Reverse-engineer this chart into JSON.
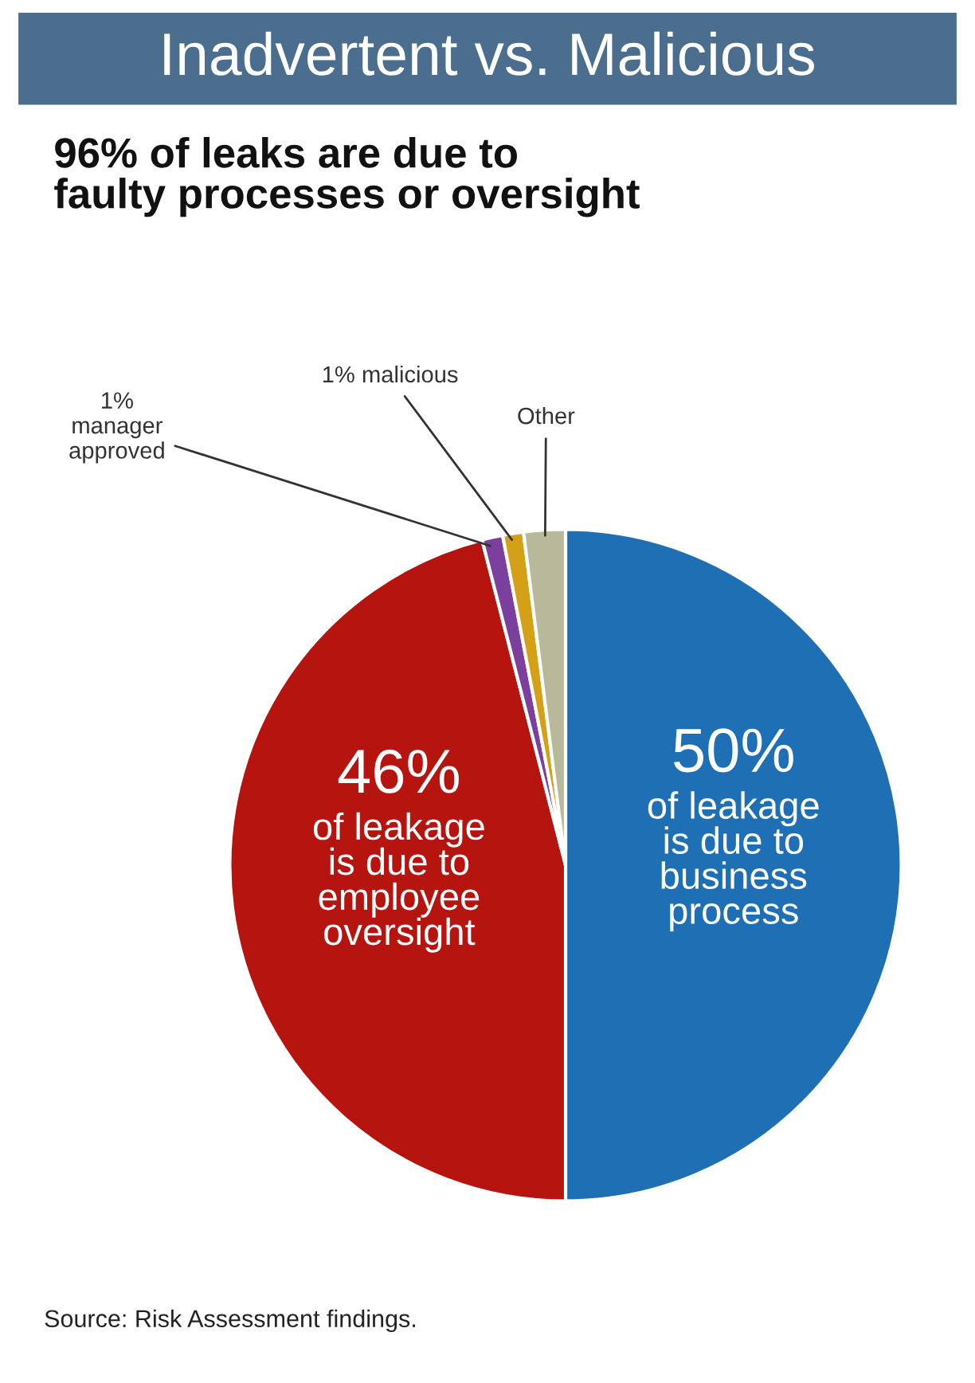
{
  "chart_data": {
    "type": "pie",
    "title": "Inadvertent vs. Malicious",
    "subtitle": "96% of leaks are due to\nfaulty processes or oversight",
    "categories": [
      "of leakage\nis due to\nbusiness\nprocess",
      "of leakage\nis due to\nemployee\noversight",
      "manager\napproved",
      "malicious",
      "Other"
    ],
    "values": [
      50,
      46,
      1,
      1,
      2
    ],
    "value_labels": [
      "50%",
      "46%",
      "1%",
      "1%",
      null
    ],
    "colors": [
      "#1f6fb5",
      "#b5140f",
      "#7b3f9e",
      "#d4a017",
      "#b8b99b"
    ],
    "annotations": [
      "Source: Risk Assessment findings."
    ]
  }
}
